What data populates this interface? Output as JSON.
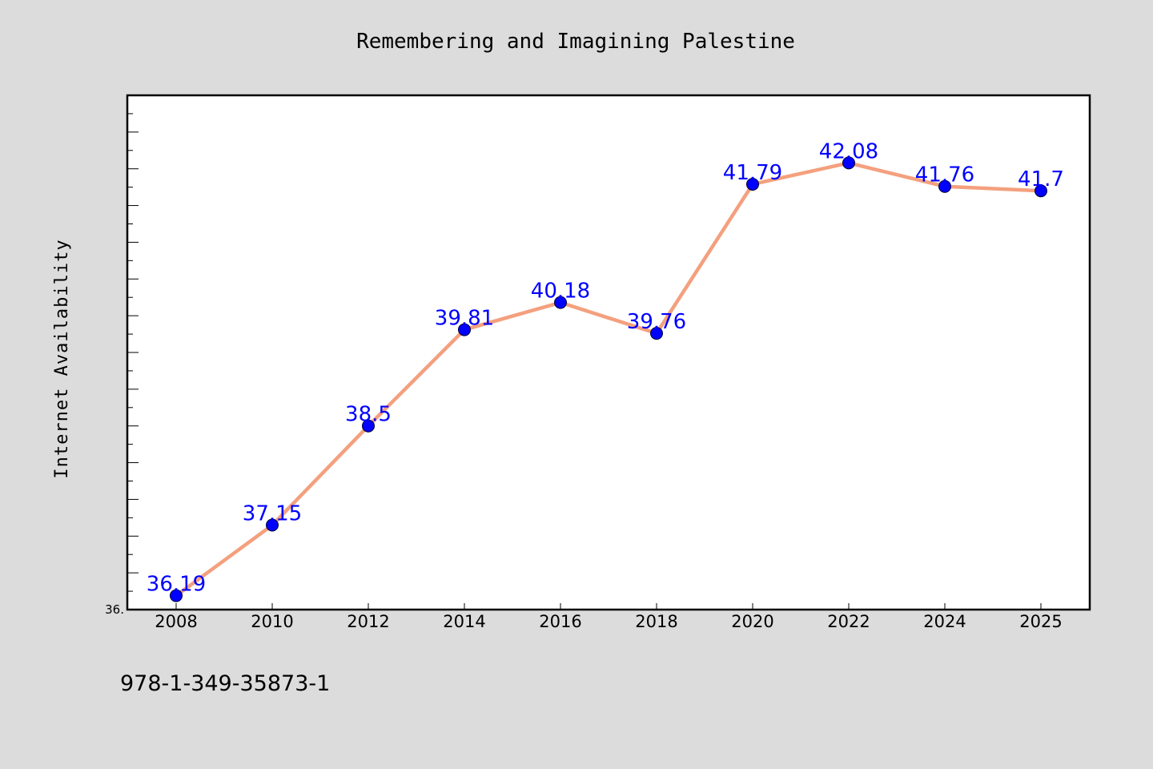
{
  "chart_data": {
    "type": "line",
    "title": "Remembering and Imagining Palestine",
    "xlabel": "",
    "ylabel": "Internet Availability",
    "categories": [
      "2008",
      "2010",
      "2012",
      "2014",
      "2016",
      "2018",
      "2020",
      "2022",
      "2024",
      "2025"
    ],
    "series": [
      {
        "values": [
          36.19,
          37.15,
          38.5,
          39.81,
          40.18,
          39.76,
          41.79,
          42.08,
          41.76,
          41.7
        ],
        "data_labels": [
          "36.19",
          "37.15",
          "38.5",
          "39.81",
          "40.18",
          "39.76",
          "41.79",
          "42.08",
          "41.76",
          "41.7"
        ]
      }
    ],
    "ylim": [
      36.0,
      43.0
    ],
    "y_tick_label": "36.",
    "grid": false,
    "line_color": "#f4a07e",
    "marker_color": "#0000ff",
    "label_color": "#0000ff",
    "background_color": "#dcdcdc",
    "plot_background_color": "#ffffff"
  },
  "footer": {
    "isbn": "978-1-349-35873-1"
  }
}
